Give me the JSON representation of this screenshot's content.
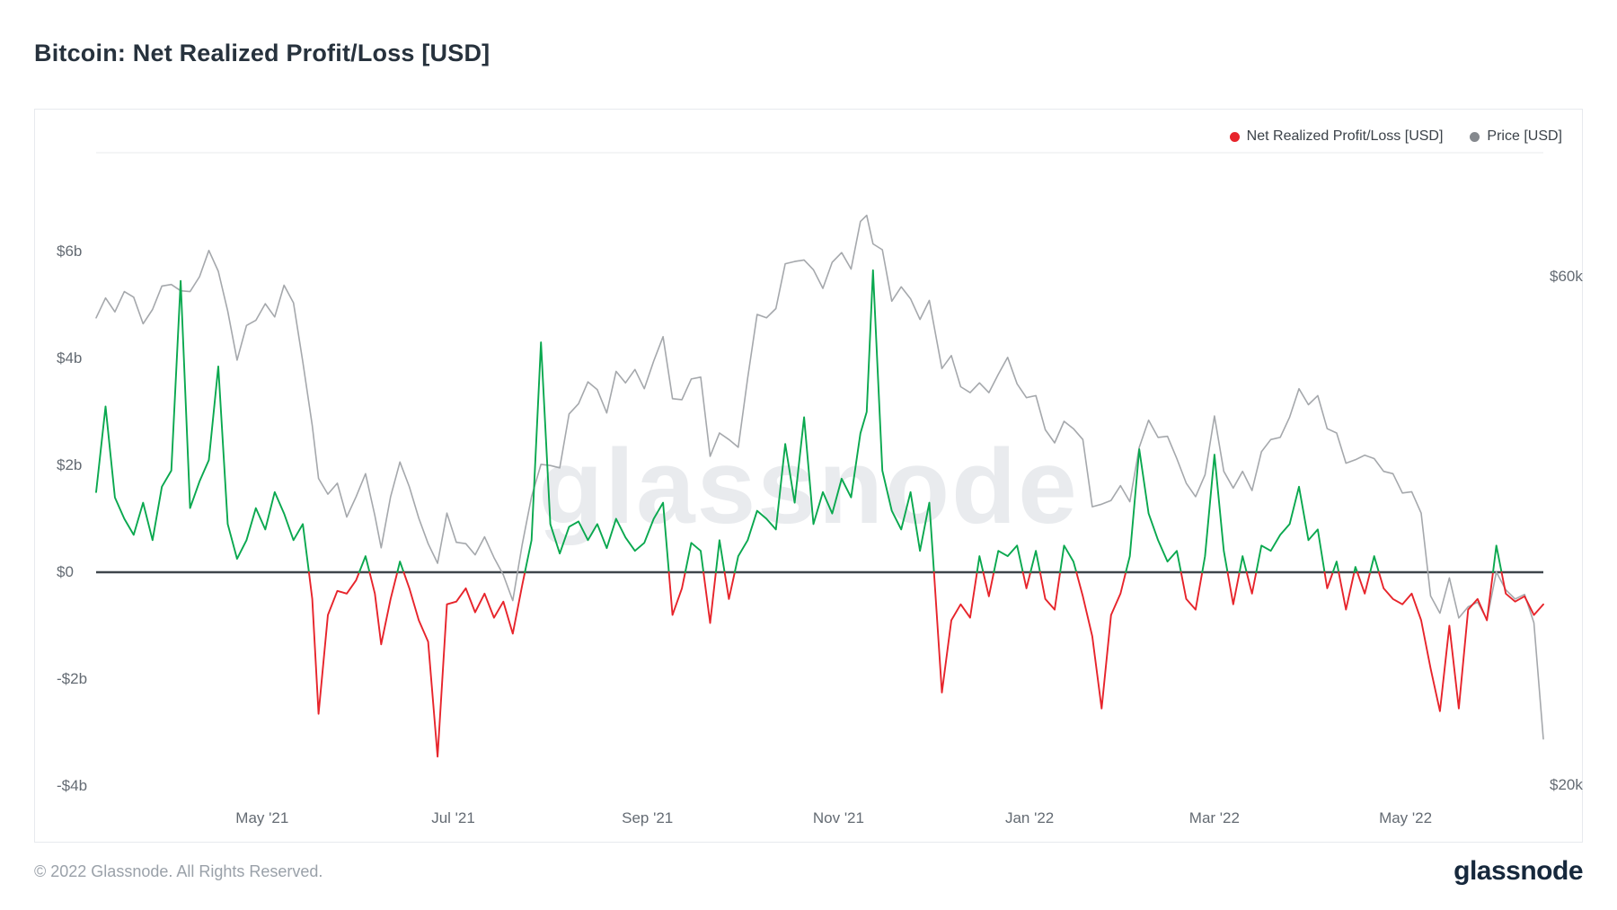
{
  "page": {
    "title": "Bitcoin: Net Realized Profit/Loss [USD]",
    "footer": {
      "copyright": "© 2022 Glassnode. All Rights Reserved.",
      "brand": "glassnode"
    }
  },
  "watermark": "glassnode",
  "legend": {
    "items": [
      {
        "label": "Net Realized Profit/Loss [USD]",
        "color": "#e7242b"
      },
      {
        "label": "Price [USD]",
        "color": "#85898e"
      }
    ]
  },
  "chart_data": {
    "type": "line",
    "title": "Bitcoin: Net Realized Profit/Loss [USD]",
    "legend_position": "top-right",
    "grid": false,
    "zero_line": true,
    "x": [
      "2021-03-09",
      "2021-03-12",
      "2021-03-15",
      "2021-03-18",
      "2021-03-21",
      "2021-03-24",
      "2021-03-27",
      "2021-03-30",
      "2021-04-02",
      "2021-04-05",
      "2021-04-08",
      "2021-04-11",
      "2021-04-14",
      "2021-04-17",
      "2021-04-20",
      "2021-04-23",
      "2021-04-26",
      "2021-04-29",
      "2021-05-02",
      "2021-05-05",
      "2021-05-08",
      "2021-05-11",
      "2021-05-14",
      "2021-05-17",
      "2021-05-19",
      "2021-05-22",
      "2021-05-25",
      "2021-05-28",
      "2021-05-31",
      "2021-06-03",
      "2021-06-06",
      "2021-06-08",
      "2021-06-11",
      "2021-06-14",
      "2021-06-17",
      "2021-06-20",
      "2021-06-23",
      "2021-06-26",
      "2021-06-29",
      "2021-07-02",
      "2021-07-05",
      "2021-07-08",
      "2021-07-11",
      "2021-07-14",
      "2021-07-17",
      "2021-07-20",
      "2021-07-23",
      "2021-07-26",
      "2021-07-29",
      "2021-08-01",
      "2021-08-04",
      "2021-08-07",
      "2021-08-10",
      "2021-08-13",
      "2021-08-16",
      "2021-08-19",
      "2021-08-22",
      "2021-08-25",
      "2021-08-28",
      "2021-08-31",
      "2021-09-03",
      "2021-09-06",
      "2021-09-09",
      "2021-09-12",
      "2021-09-15",
      "2021-09-18",
      "2021-09-21",
      "2021-09-24",
      "2021-09-27",
      "2021-09-30",
      "2021-10-03",
      "2021-10-06",
      "2021-10-09",
      "2021-10-12",
      "2021-10-15",
      "2021-10-18",
      "2021-10-21",
      "2021-10-24",
      "2021-10-27",
      "2021-10-30",
      "2021-11-02",
      "2021-11-05",
      "2021-11-08",
      "2021-11-10",
      "2021-11-12",
      "2021-11-15",
      "2021-11-18",
      "2021-11-21",
      "2021-11-24",
      "2021-11-27",
      "2021-11-30",
      "2021-12-04",
      "2021-12-07",
      "2021-12-10",
      "2021-12-13",
      "2021-12-16",
      "2021-12-19",
      "2021-12-22",
      "2021-12-25",
      "2021-12-28",
      "2021-12-31",
      "2022-01-03",
      "2022-01-06",
      "2022-01-09",
      "2022-01-12",
      "2022-01-15",
      "2022-01-18",
      "2022-01-21",
      "2022-01-24",
      "2022-01-27",
      "2022-01-30",
      "2022-02-02",
      "2022-02-05",
      "2022-02-08",
      "2022-02-11",
      "2022-02-14",
      "2022-02-17",
      "2022-02-20",
      "2022-02-23",
      "2022-02-26",
      "2022-03-01",
      "2022-03-04",
      "2022-03-07",
      "2022-03-10",
      "2022-03-13",
      "2022-03-16",
      "2022-03-19",
      "2022-03-22",
      "2022-03-25",
      "2022-03-28",
      "2022-03-31",
      "2022-04-03",
      "2022-04-06",
      "2022-04-09",
      "2022-04-12",
      "2022-04-15",
      "2022-04-18",
      "2022-04-21",
      "2022-04-24",
      "2022-04-27",
      "2022-04-30",
      "2022-05-03",
      "2022-05-06",
      "2022-05-09",
      "2022-05-12",
      "2022-05-15",
      "2022-05-18",
      "2022-05-21",
      "2022-05-24",
      "2022-05-27",
      "2022-05-30",
      "2022-06-02",
      "2022-06-05",
      "2022-06-08",
      "2022-06-11",
      "2022-06-14"
    ],
    "series": [
      {
        "name": "Net Realized Profit/Loss [USD]",
        "axis": "left",
        "unit": "USD billions",
        "style": {
          "positive_color": "#0aa84f",
          "negative_color": "#e7242b"
        },
        "values": [
          1.5,
          3.1,
          1.4,
          1.0,
          0.7,
          1.3,
          0.6,
          1.6,
          1.9,
          5.45,
          1.2,
          1.7,
          2.1,
          3.85,
          0.9,
          0.25,
          0.6,
          1.2,
          0.8,
          1.5,
          1.1,
          0.6,
          0.9,
          -0.5,
          -2.65,
          -0.8,
          -0.35,
          -0.4,
          -0.15,
          0.3,
          -0.4,
          -1.35,
          -0.5,
          0.2,
          -0.3,
          -0.9,
          -1.3,
          -3.45,
          -0.6,
          -0.55,
          -0.3,
          -0.75,
          -0.4,
          -0.85,
          -0.55,
          -1.15,
          -0.25,
          0.6,
          4.3,
          0.9,
          0.35,
          0.85,
          0.95,
          0.6,
          0.9,
          0.45,
          1.0,
          0.65,
          0.4,
          0.55,
          1.0,
          1.3,
          -0.8,
          -0.3,
          0.55,
          0.4,
          -0.95,
          0.6,
          -0.5,
          0.3,
          0.6,
          1.15,
          1.0,
          0.8,
          2.4,
          1.3,
          2.9,
          0.9,
          1.5,
          1.1,
          1.75,
          1.4,
          2.6,
          3.0,
          5.65,
          1.9,
          1.15,
          0.8,
          1.5,
          0.4,
          1.3,
          -2.25,
          -0.9,
          -0.6,
          -0.85,
          0.3,
          -0.45,
          0.4,
          0.3,
          0.5,
          -0.3,
          0.4,
          -0.5,
          -0.7,
          0.5,
          0.2,
          -0.45,
          -1.2,
          -2.55,
          -0.8,
          -0.4,
          0.3,
          2.3,
          1.1,
          0.6,
          0.2,
          0.4,
          -0.5,
          -0.7,
          0.3,
          2.2,
          0.4,
          -0.6,
          0.3,
          -0.4,
          0.5,
          0.4,
          0.7,
          0.9,
          1.6,
          0.6,
          0.8,
          -0.3,
          0.2,
          -0.7,
          0.1,
          -0.4,
          0.3,
          -0.3,
          -0.5,
          -0.6,
          -0.4,
          -0.9,
          -1.8,
          -2.6,
          -1.0,
          -2.55,
          -0.7,
          -0.5,
          -0.9,
          0.5,
          -0.4,
          -0.55,
          -0.45,
          -0.8,
          -0.6
        ]
      },
      {
        "name": "Price [USD]",
        "axis": "right",
        "unit": "USD thousands",
        "style": {
          "color": "#a5a8ac"
        },
        "values": [
          54.9,
          57.3,
          55.6,
          58.1,
          57.4,
          54.2,
          55.9,
          58.8,
          59.0,
          58.2,
          58.1,
          60.0,
          63.5,
          60.7,
          55.7,
          50.1,
          54.0,
          54.6,
          56.6,
          55.0,
          58.9,
          56.7,
          49.9,
          43.5,
          38.8,
          37.5,
          38.4,
          35.7,
          37.3,
          39.2,
          35.8,
          33.4,
          37.3,
          40.2,
          38.1,
          35.6,
          33.7,
          32.3,
          36.0,
          33.8,
          33.7,
          32.9,
          34.2,
          32.7,
          31.5,
          29.8,
          33.6,
          37.3,
          40.0,
          39.9,
          39.7,
          44.6,
          45.6,
          47.8,
          47.0,
          44.7,
          48.9,
          47.7,
          49.1,
          47.1,
          50.0,
          52.7,
          46.1,
          46.0,
          48.1,
          48.3,
          40.7,
          42.8,
          42.2,
          41.5,
          48.2,
          55.3,
          54.9,
          56.0,
          61.7,
          62.0,
          62.2,
          60.9,
          58.5,
          61.9,
          63.2,
          61.0,
          67.6,
          68.5,
          64.4,
          63.6,
          56.9,
          58.7,
          57.2,
          54.7,
          57.0,
          49.2,
          50.6,
          47.3,
          46.7,
          47.7,
          46.7,
          48.6,
          50.4,
          47.6,
          46.2,
          46.4,
          43.1,
          41.9,
          43.9,
          43.2,
          42.2,
          36.5,
          36.7,
          37.0,
          38.2,
          36.9,
          41.5,
          44.0,
          42.4,
          42.5,
          40.5,
          38.4,
          37.3,
          39.1,
          44.4,
          39.4,
          38.0,
          39.4,
          37.8,
          41.1,
          42.2,
          42.4,
          44.3,
          47.1,
          45.5,
          46.4,
          43.2,
          42.8,
          40.1,
          40.4,
          40.8,
          40.5,
          39.4,
          39.2,
          37.6,
          37.7,
          36.0,
          30.1,
          29.0,
          31.3,
          28.7,
          29.4,
          29.7,
          28.6,
          31.7,
          30.5,
          29.9,
          30.2,
          28.4,
          22.1
        ]
      }
    ],
    "axes": {
      "left": {
        "scale": "linear",
        "ticks": [
          {
            "label": "$6b",
            "value": 6
          },
          {
            "label": "$4b",
            "value": 4
          },
          {
            "label": "$2b",
            "value": 2
          },
          {
            "label": "$0",
            "value": 0
          },
          {
            "label": "-$2b",
            "value": -2
          },
          {
            "label": "-$4b",
            "value": -4
          }
        ]
      },
      "right": {
        "scale": "log",
        "ticks": [
          {
            "label": "$60k",
            "value": 60
          },
          {
            "label": "$20k",
            "value": 20
          }
        ]
      },
      "x": {
        "range": [
          "2021-03-09",
          "2022-06-14"
        ],
        "ticks": [
          {
            "label": "May '21",
            "date": "2021-05-01"
          },
          {
            "label": "Jul '21",
            "date": "2021-07-01"
          },
          {
            "label": "Sep '21",
            "date": "2021-09-01"
          },
          {
            "label": "Nov '21",
            "date": "2021-11-01"
          },
          {
            "label": "Jan '22",
            "date": "2022-01-01"
          },
          {
            "label": "Mar '22",
            "date": "2022-03-01"
          },
          {
            "label": "May '22",
            "date": "2022-05-01"
          }
        ]
      }
    }
  }
}
